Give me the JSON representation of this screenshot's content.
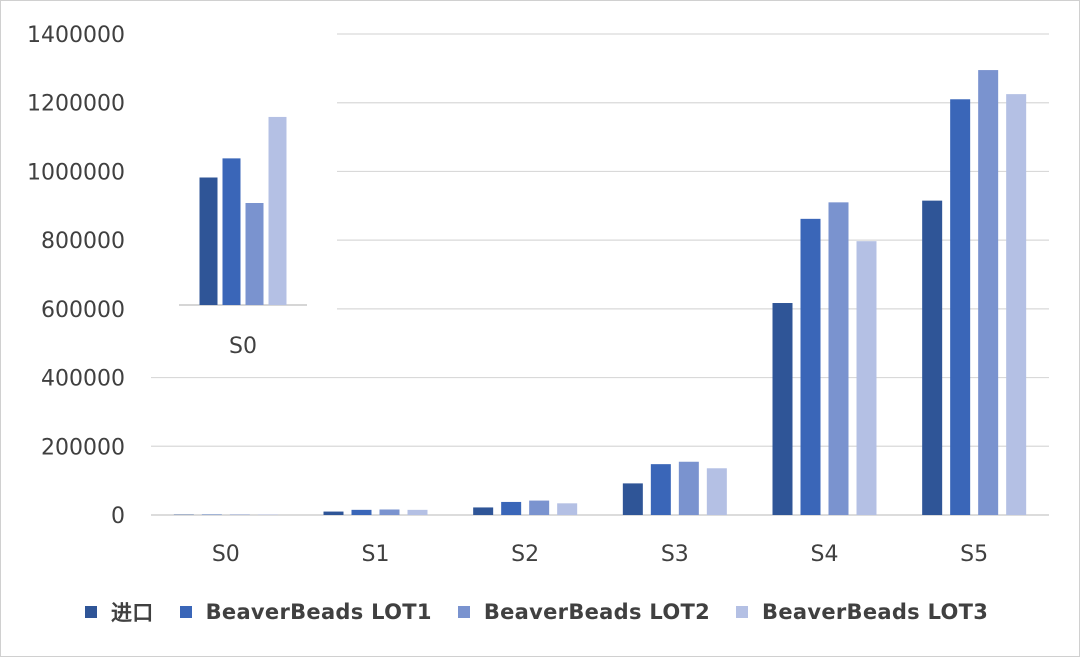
{
  "chart_data": [
    {
      "type": "bar",
      "categories": [
        "S0",
        "S1",
        "S2",
        "S3",
        "S4",
        "S5"
      ],
      "series": [
        {
          "name": "进口",
          "color": "#2F5597",
          "values": [
            1000,
            10000,
            22000,
            92000,
            617000,
            915000
          ]
        },
        {
          "name": "BeaverBeads LOT1",
          "color": "#3A66B8",
          "values": [
            1200,
            15000,
            38000,
            148000,
            862000,
            1210000
          ]
        },
        {
          "name": "BeaverBeads LOT2",
          "color": "#7A93CF",
          "values": [
            1100,
            16000,
            42000,
            155000,
            910000,
            1295000
          ]
        },
        {
          "name": "BeaverBeads LOT3",
          "color": "#B4C0E4",
          "values": [
            1300,
            15000,
            34000,
            136000,
            797000,
            1225000
          ]
        }
      ],
      "yticks": [
        "0",
        "200000",
        "400000",
        "600000",
        "800000",
        "1000000",
        "1200000",
        "1400000"
      ],
      "ylim": [
        0,
        1400000
      ],
      "grid": true,
      "legend": "bottom"
    },
    {
      "type": "bar",
      "categories": [
        "S0"
      ],
      "series": [
        {
          "name": "进口",
          "color": "#2F5597",
          "values": [
            1080
          ]
        },
        {
          "name": "BeaverBeads LOT1",
          "color": "#3A66B8",
          "values": [
            1110
          ]
        },
        {
          "name": "BeaverBeads LOT2",
          "color": "#7A93CF",
          "values": [
            1040
          ]
        },
        {
          "name": "BeaverBeads LOT3",
          "color": "#B4C0E4",
          "values": [
            1175
          ]
        }
      ],
      "grid": false,
      "legend": "none"
    }
  ]
}
